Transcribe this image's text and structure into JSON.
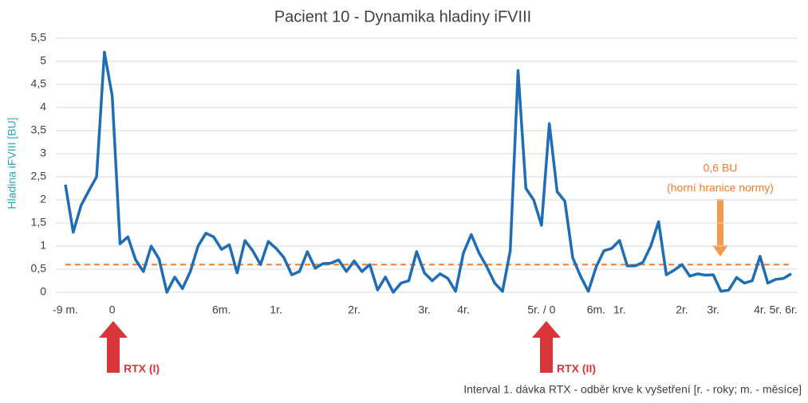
{
  "chart_data": {
    "type": "line",
    "title": "Pacient 10 - Dynamika hladiny iFVIII",
    "y_label": "Hladina iFVIII [BU]",
    "x_label": "Interval 1. dávka RTX - odběr krve k vyšetření [r. - roky; m. - měsíce]",
    "categories": [
      "-9 m.",
      null,
      null,
      null,
      null,
      null,
      "0",
      null,
      null,
      null,
      null,
      null,
      null,
      null,
      null,
      null,
      null,
      null,
      null,
      null,
      "6m.",
      null,
      null,
      null,
      null,
      null,
      null,
      "1r.",
      null,
      null,
      null,
      null,
      null,
      null,
      null,
      null,
      null,
      "2r.",
      null,
      null,
      null,
      null,
      null,
      null,
      null,
      null,
      "3r.",
      null,
      null,
      null,
      null,
      "4r.",
      null,
      null,
      null,
      null,
      null,
      null,
      null,
      null,
      null,
      "5r. / 0",
      null,
      null,
      null,
      null,
      null,
      null,
      "6m.",
      null,
      null,
      "1r.",
      null,
      null,
      null,
      null,
      null,
      null,
      null,
      "2r.",
      null,
      null,
      null,
      "3r.",
      null,
      null,
      null,
      null,
      null,
      "4r.",
      null,
      "5r.",
      null,
      "6r."
    ],
    "series": [
      {
        "name": "iFVIII",
        "color": "#1f6eb5",
        "values": [
          2.33,
          1.3,
          1.88,
          2.2,
          2.5,
          5.2,
          4.25,
          1.05,
          1.2,
          0.7,
          0.45,
          1.0,
          0.72,
          0.0,
          0.33,
          0.08,
          0.45,
          1.0,
          1.28,
          1.2,
          0.93,
          1.03,
          0.42,
          1.12,
          0.9,
          0.6,
          1.1,
          0.95,
          0.75,
          0.38,
          0.45,
          0.88,
          0.52,
          0.62,
          0.63,
          0.7,
          0.45,
          0.68,
          0.45,
          0.6,
          0.05,
          0.33,
          0.0,
          0.2,
          0.25,
          0.88,
          0.42,
          0.25,
          0.4,
          0.3,
          0.02,
          0.85,
          1.25,
          0.85,
          0.55,
          0.2,
          0.02,
          0.9,
          4.8,
          2.25,
          2.0,
          1.45,
          3.65,
          2.18,
          1.97,
          0.75,
          0.35,
          0.02,
          0.55,
          0.9,
          0.95,
          1.12,
          0.57,
          0.57,
          0.65,
          1.0,
          1.53,
          0.38,
          0.48,
          0.6,
          0.35,
          0.4,
          0.37,
          0.38,
          0.02,
          0.05,
          0.32,
          0.2,
          0.25,
          0.78,
          0.2,
          0.28,
          0.3,
          0.4
        ]
      }
    ],
    "threshold": {
      "value": 0.6,
      "color": "#f07c2c",
      "label": "0,6 BU",
      "note": "(horní hranice normy)"
    },
    "annotations": [
      "RTX (I)",
      "RTX (II)"
    ],
    "ylim": [
      0,
      5.5
    ],
    "yticks": [
      0,
      {
        "value": 0.5,
        "label": "0,5"
      },
      1,
      {
        "value": 1.5,
        "label": "1,5"
      },
      2,
      {
        "value": 2.5,
        "label": "2,5"
      },
      3,
      {
        "value": 3.5,
        "label": "3,5"
      },
      4,
      {
        "value": 4.5,
        "label": "4,5"
      },
      5,
      {
        "value": 5.5,
        "label": "5,5"
      }
    ],
    "grid": true
  }
}
